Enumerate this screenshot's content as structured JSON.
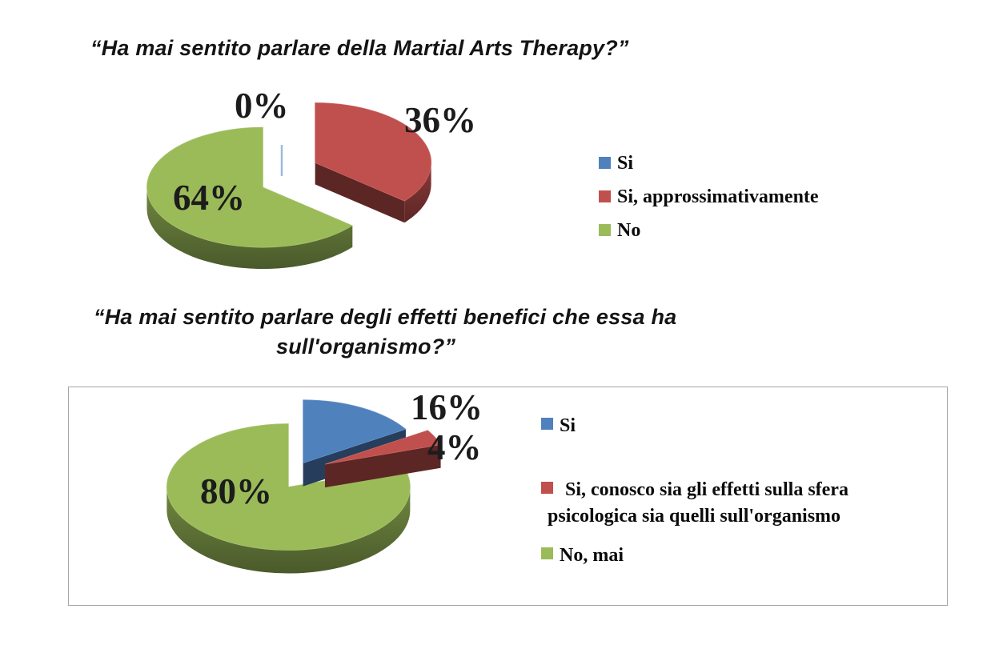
{
  "chart_data": [
    {
      "type": "pie",
      "style": "3d-exploded",
      "title": "“Ha mai sentito parlare della Martial Arts Therapy?”",
      "categories": [
        "Si",
        "Si, approssimativamente",
        "No"
      ],
      "values": [
        0,
        36,
        64
      ],
      "unit": "%",
      "data_labels": [
        "0%",
        "36%",
        "64%"
      ],
      "colors": [
        "#4f81bd",
        "#c0504d",
        "#9bbb59"
      ],
      "legend_position": "right",
      "legend": {
        "items": [
          {
            "color": "#4f81bd",
            "lines": [
              "Si"
            ]
          },
          {
            "color": "#c0504d",
            "lines": [
              "Si, approssimativamente"
            ]
          },
          {
            "color": "#9bbb59",
            "lines": [
              "No"
            ]
          }
        ]
      }
    },
    {
      "type": "pie",
      "style": "3d-exploded",
      "title_lines": [
        "“Ha mai sentito parlare degli effetti benefici che essa ha",
        "sull'organismo?”"
      ],
      "categories": [
        "Si",
        "Si, conosco sia gli effetti sulla sfera psicologica sia quelli sull'organismo",
        "No, mai"
      ],
      "values": [
        16,
        4,
        80
      ],
      "unit": "%",
      "data_labels": [
        "16%",
        "4%",
        "80%"
      ],
      "colors": [
        "#4f81bd",
        "#c0504d",
        "#9bbb59"
      ],
      "legend_position": "right",
      "legend": {
        "items": [
          {
            "color": "#4f81bd",
            "lines": [
              "Si"
            ]
          },
          {
            "color": "#c0504d",
            "lines": [
              "Si, conosco sia gli effetti sulla sfera",
              "psicologica sia quelli sull'organismo"
            ]
          },
          {
            "color": "#9bbb59",
            "lines": [
              "No, mai"
            ]
          }
        ]
      }
    }
  ]
}
